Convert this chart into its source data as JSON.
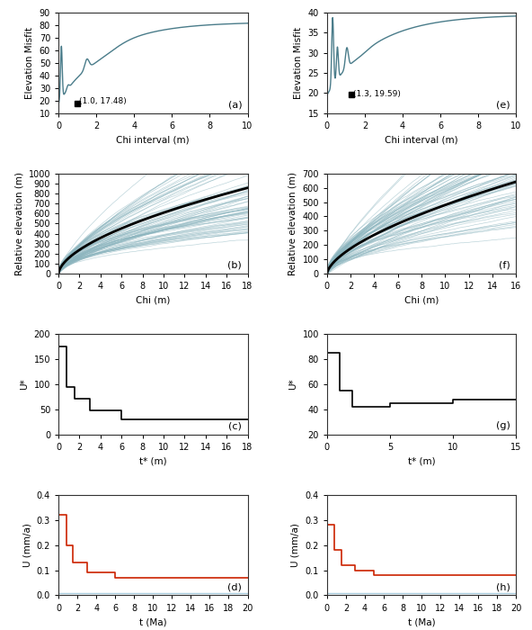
{
  "fig_width": 5.92,
  "fig_height": 7.0,
  "bg_color": "#ffffff",
  "teal_color": "#4a7c8a",
  "teal_light": "#8ab4be",
  "red_color": "#cc2200",
  "blue_light": "#aaccdd",
  "ax_a": {
    "xlim": [
      0,
      10
    ],
    "ylim": [
      10,
      90
    ],
    "xlabel": "Chi interval (m)",
    "ylabel": "Elevation Misfit",
    "yticks": [
      10,
      20,
      30,
      40,
      50,
      60,
      70,
      80,
      90
    ],
    "xticks": [
      0,
      2,
      4,
      6,
      8,
      10
    ],
    "point_x": 1.0,
    "point_y": 17.48,
    "point_label": "(1.0, 17.48)"
  },
  "ax_e": {
    "xlim": [
      0,
      10
    ],
    "ylim": [
      15,
      40
    ],
    "xlabel": "Chi interval (m)",
    "ylabel": "Elevation Misfit",
    "yticks": [
      15,
      20,
      25,
      30,
      35,
      40
    ],
    "xticks": [
      0,
      2,
      4,
      6,
      8,
      10
    ],
    "point_x": 1.3,
    "point_y": 19.59,
    "point_label": "(1.3, 19.59)"
  },
  "ax_b": {
    "xlim": [
      0,
      18
    ],
    "ylim": [
      0,
      1000
    ],
    "xlabel": "Chi (m)",
    "ylabel": "Relative elevation (m)",
    "yticks": [
      0,
      100,
      200,
      300,
      400,
      500,
      600,
      700,
      800,
      900,
      1000
    ],
    "xticks": [
      0,
      2,
      4,
      6,
      8,
      10,
      12,
      14,
      16,
      18
    ]
  },
  "ax_f": {
    "xlim": [
      0,
      16
    ],
    "ylim": [
      0,
      700
    ],
    "xlabel": "Chi (m)",
    "ylabel": "Relative elevation (m)",
    "yticks": [
      0,
      100,
      200,
      300,
      400,
      500,
      600,
      700
    ],
    "xticks": [
      0,
      2,
      4,
      6,
      8,
      10,
      12,
      14,
      16
    ]
  },
  "ax_c": {
    "xlim": [
      0,
      18
    ],
    "ylim": [
      0,
      200
    ],
    "xlabel": "t* (m)",
    "ylabel": "U*",
    "yticks": [
      0,
      50,
      100,
      150,
      200
    ],
    "xticks": [
      0,
      2,
      4,
      6,
      8,
      10,
      12,
      14,
      16,
      18
    ]
  },
  "ax_g": {
    "xlim": [
      0,
      15
    ],
    "ylim": [
      20,
      100
    ],
    "xlabel": "t* (m)",
    "ylabel": "U*",
    "yticks": [
      20,
      40,
      60,
      80,
      100
    ],
    "xticks": [
      0,
      5,
      10,
      15
    ]
  },
  "ax_d": {
    "xlim": [
      0,
      20
    ],
    "ylim": [
      0,
      0.4
    ],
    "xlabel": "t (Ma)",
    "ylabel": "U (mm/a)",
    "yticks": [
      0.0,
      0.1,
      0.2,
      0.3,
      0.4
    ],
    "xticks": [
      0,
      2,
      4,
      6,
      8,
      10,
      12,
      14,
      16,
      18,
      20
    ]
  },
  "ax_h": {
    "xlim": [
      0,
      20
    ],
    "ylim": [
      0,
      0.4
    ],
    "xlabel": "t (Ma)",
    "ylabel": "U (mm/a)",
    "yticks": [
      0.0,
      0.1,
      0.2,
      0.3,
      0.4
    ],
    "xticks": [
      0,
      2,
      4,
      6,
      8,
      10,
      12,
      14,
      16,
      18,
      20
    ]
  }
}
